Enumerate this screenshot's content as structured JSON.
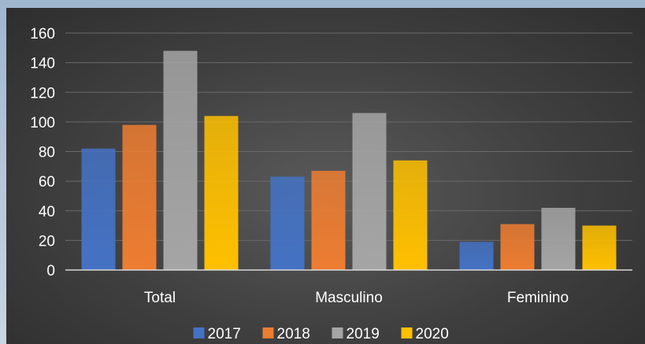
{
  "chart_data": {
    "type": "bar",
    "categories": [
      "Total",
      "Masculino",
      "Feminino"
    ],
    "series": [
      {
        "name": "2017",
        "values": [
          82,
          63,
          19
        ],
        "color": "#4472c4"
      },
      {
        "name": "2018",
        "values": [
          98,
          67,
          31
        ],
        "color": "#ed7d31"
      },
      {
        "name": "2019",
        "values": [
          148,
          106,
          42
        ],
        "color": "#a5a5a5"
      },
      {
        "name": "2020",
        "values": [
          104,
          74,
          30
        ],
        "color": "#ffc000"
      }
    ],
    "ylim": [
      0,
      160
    ],
    "y_ticks": [
      0,
      20,
      40,
      60,
      80,
      100,
      120,
      140,
      160
    ],
    "grid": true,
    "legend": "bottom-center",
    "background_color": "#404040",
    "grid_color": "#6a6a6a"
  }
}
